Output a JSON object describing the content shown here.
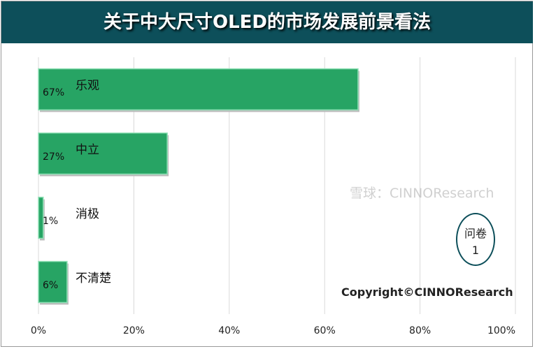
{
  "chart_data": {
    "type": "bar",
    "orientation": "horizontal",
    "title": "关于中大尺寸OLED的市场发展前景看法",
    "categories": [
      "乐观",
      "中立",
      "消极",
      "不清楚"
    ],
    "values": [
      67,
      27,
      1,
      6
    ],
    "data_labels": [
      "67%",
      "27%",
      "1%",
      "6%"
    ],
    "xlim": [
      0,
      100
    ],
    "xticks": [
      "0%",
      "20%",
      "40%",
      "60%",
      "80%",
      "100%"
    ],
    "grid": true,
    "bar_color": "#27a464"
  },
  "annotations": {
    "copyright": "Copyright©CINNOResearch",
    "badge_line1": "问卷",
    "badge_line2": "1",
    "watermark": "雪球：CINNOResearch"
  }
}
